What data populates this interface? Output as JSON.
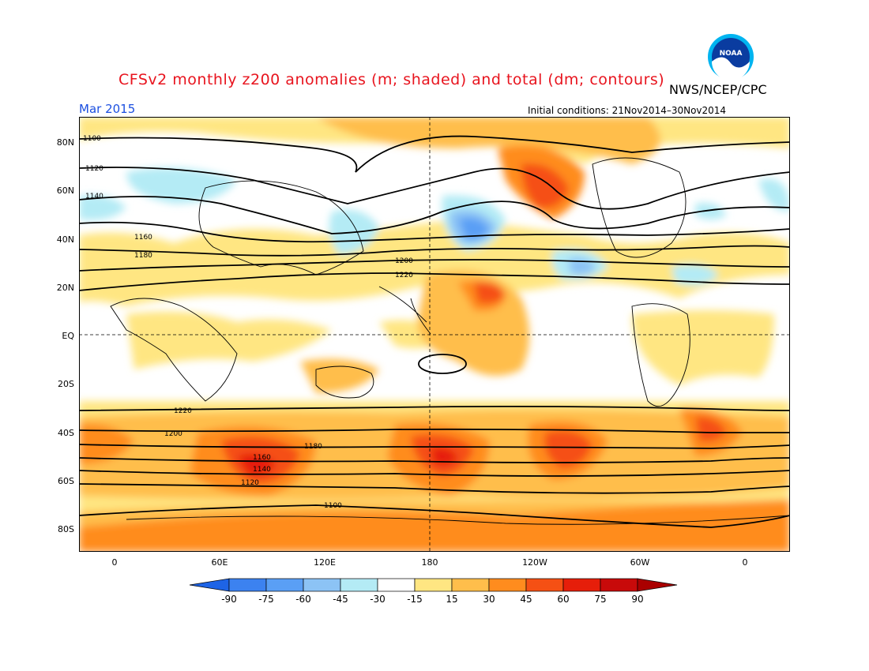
{
  "title": "CFSv2 monthly z200 anomalies (m; shaded) and total (dm; contours)",
  "agency": "NWS/NCEP/CPC",
  "logo_text": "NOAA",
  "date_label": "Mar 2015",
  "initial_conditions": "Initial conditions: 21Nov2014–30Nov2014",
  "lat_labels": [
    "80N",
    "60N",
    "40N",
    "20N",
    "EQ",
    "20S",
    "40S",
    "60S",
    "80S"
  ],
  "lon_labels": [
    "0",
    "60E",
    "120E",
    "180",
    "120W",
    "60W",
    "0"
  ],
  "colorbar": {
    "labels": [
      "-90",
      "-75",
      "-60",
      "-45",
      "-30",
      "-15",
      "15",
      "30",
      "45",
      "60",
      "75",
      "90"
    ],
    "colors": [
      "#1e64e6",
      "#3c82f0",
      "#5a9ff5",
      "#8cc3f5",
      "#b4ebf5",
      "#ffffff",
      "#ffe682",
      "#ffbe4b",
      "#ff8c1e",
      "#f55014",
      "#e61e0a",
      "#c80a0a",
      "#aa0000"
    ]
  },
  "contour_labels": {
    "north": [
      "1100",
      "1120",
      "1140",
      "1160",
      "1180",
      "1200",
      "1220"
    ],
    "south": [
      "1220",
      "1200",
      "1180",
      "1160",
      "1140",
      "1120",
      "1100"
    ]
  }
}
